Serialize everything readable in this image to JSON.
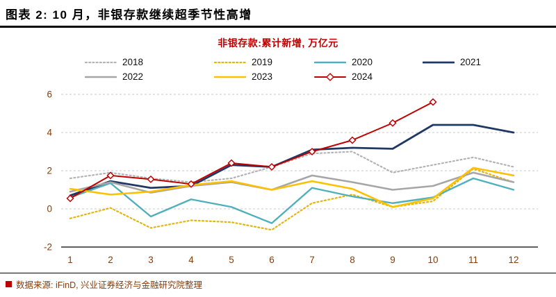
{
  "header": {
    "title": "图表 2:  10 月，非银存款继续超季节性高增"
  },
  "chart_data": {
    "type": "line",
    "title": "非银存款:累计新增, 万亿元",
    "xlabel": "",
    "ylabel": "",
    "x": [
      1,
      2,
      3,
      4,
      5,
      6,
      7,
      8,
      9,
      10,
      11,
      12
    ],
    "ylim": [
      -2,
      6
    ],
    "yticks": [
      -2,
      0,
      2,
      4,
      6
    ],
    "grid": "horizontal-dashed",
    "legend_position": "top",
    "series": [
      {
        "name": "2018",
        "color": "#b3b3b3",
        "style": "dotted",
        "width": 2.2,
        "values": [
          1.6,
          1.9,
          1.6,
          1.4,
          1.6,
          2.2,
          2.9,
          3.0,
          1.9,
          2.3,
          2.7,
          2.2
        ]
      },
      {
        "name": "2019",
        "color": "#e3b40e",
        "style": "dotted",
        "width": 2.2,
        "values": [
          -0.5,
          0.05,
          -1.0,
          -0.6,
          -0.7,
          -1.1,
          0.3,
          0.75,
          0.1,
          0.4,
          2.1,
          1.4
        ]
      },
      {
        "name": "2020",
        "color": "#4fb0bc",
        "style": "solid",
        "width": 2.4,
        "values": [
          0.6,
          1.35,
          -0.4,
          0.5,
          0.1,
          -0.75,
          1.1,
          0.65,
          0.3,
          0.6,
          1.6,
          1.0
        ]
      },
      {
        "name": "2021",
        "color": "#1f3864",
        "style": "solid",
        "width": 2.8,
        "values": [
          0.7,
          1.45,
          1.1,
          1.2,
          2.3,
          2.2,
          3.1,
          3.2,
          3.15,
          4.4,
          4.4,
          4.0
        ]
      },
      {
        "name": "2022",
        "color": "#a6a6a6",
        "style": "solid",
        "width": 2.6,
        "values": [
          0.9,
          1.4,
          0.85,
          1.2,
          1.4,
          1.0,
          1.75,
          1.4,
          1.0,
          1.2,
          1.9,
          1.4
        ]
      },
      {
        "name": "2023",
        "color": "#ffc000",
        "style": "solid",
        "width": 2.6,
        "values": [
          1.05,
          0.75,
          0.9,
          1.25,
          1.45,
          1.0,
          1.45,
          1.05,
          0.1,
          0.55,
          2.15,
          1.75
        ]
      },
      {
        "name": "2024",
        "color": "#c00000",
        "style": "solid-diamond",
        "width": 2.0,
        "values": [
          0.55,
          1.75,
          1.55,
          1.3,
          2.4,
          2.2,
          3.0,
          3.6,
          4.5,
          5.6
        ]
      }
    ],
    "colors": {
      "axis_text": "#843c0c",
      "grid": "#c9c9c9",
      "axis_line": "#000000",
      "marker_fill": "#ffffff"
    }
  },
  "footer": {
    "source": "数据来源: iFinD, 兴业证券经济与金融研究院整理",
    "bullet_color": "#c00000"
  }
}
